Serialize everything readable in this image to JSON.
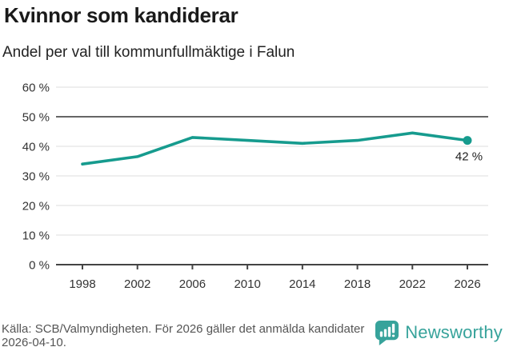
{
  "header": {
    "title": "Kvinnor som kandiderar",
    "subtitle": "Andel per val till kommunfullmäktige i Falun"
  },
  "chart_data": {
    "type": "line",
    "title": "Kvinnor som kandiderar",
    "subtitle": "Andel per val till kommunfullmäktige i Falun",
    "x": [
      1998,
      2002,
      2006,
      2010,
      2014,
      2018,
      2022,
      2026
    ],
    "values": [
      34,
      36.5,
      43,
      42,
      41,
      42,
      44.5,
      42
    ],
    "xticks": [
      1998,
      2002,
      2006,
      2010,
      2014,
      2018,
      2022,
      2026
    ],
    "yticks": [
      0,
      10,
      20,
      30,
      40,
      50,
      60
    ],
    "ytick_suffix": " %",
    "ylim": [
      0,
      60
    ],
    "grid": true,
    "legend": "none",
    "reference_line": 50,
    "end_label": "42 %",
    "line_color": "#169b8e"
  },
  "footer": {
    "source_text": "Källa: SCB/Valmyndigheten. För 2026 gäller det anmälda kandidater 2026-04-10.",
    "brand_name": "Newsworthy"
  },
  "colors": {
    "line": "#169b8e",
    "grid": "#e3e3e3",
    "reference_line": "#666666",
    "axis": "#444444",
    "tick_label": "#333333",
    "title": "#1a1a1a",
    "source": "#555555",
    "brand": "#37a39b"
  }
}
